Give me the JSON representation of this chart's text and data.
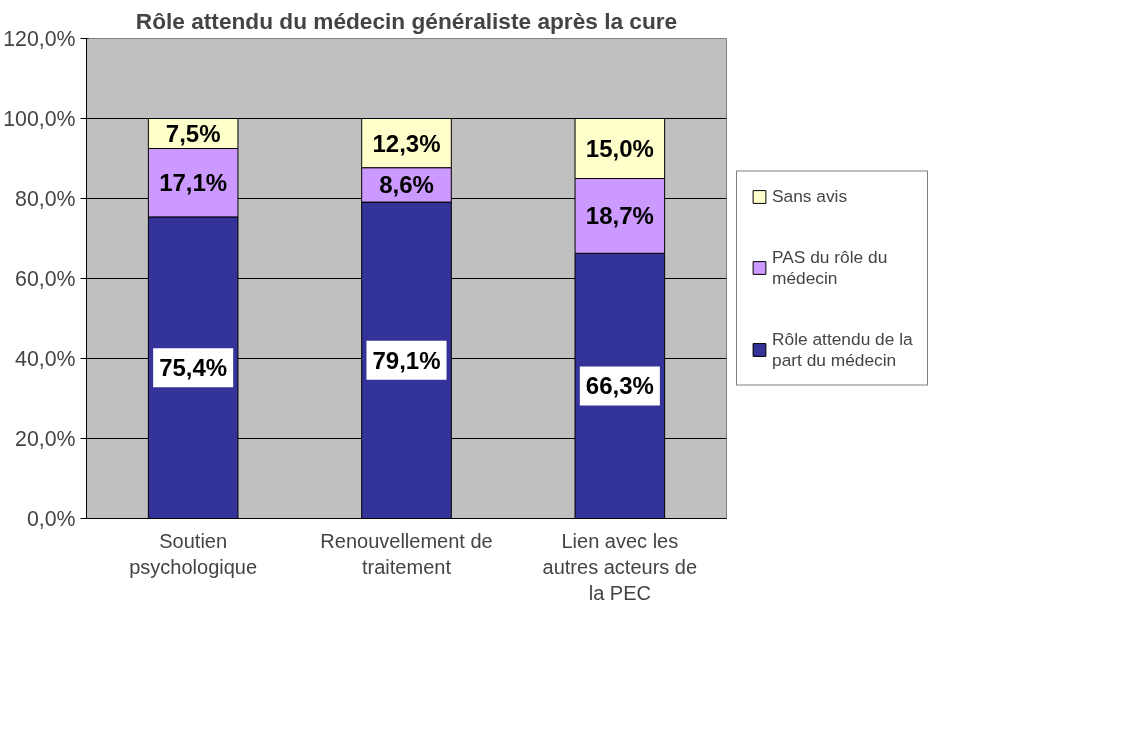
{
  "chart_data": {
    "type": "bar",
    "title": "Rôle attendu du médecin généraliste après la cure",
    "stacked": true,
    "categories": [
      "Soutien psychologique",
      "Renouvellement de traitement",
      "Lien avec les autres acteurs de la PEC"
    ],
    "series": [
      {
        "name": "Rôle attendu de la part du médecin",
        "color": "#333399",
        "values": [
          75.4,
          79.1,
          66.3
        ],
        "value_labels": [
          "75,4%",
          "79,1%",
          "66,3%"
        ]
      },
      {
        "name": "PAS du rôle du médecin",
        "color": "#cc99ff",
        "values": [
          17.1,
          8.6,
          18.7
        ],
        "value_labels": [
          "17,1%",
          "8,6%",
          "18,7%"
        ]
      },
      {
        "name": "Sans avis",
        "color": "#ffffcc",
        "values": [
          7.5,
          12.3,
          15.0
        ],
        "value_labels": [
          "7,5%",
          "12,3%",
          "15,0%"
        ]
      }
    ],
    "ylim": [
      0,
      120
    ],
    "yticks": [
      {
        "value": 0,
        "label": "0,0%"
      },
      {
        "value": 20,
        "label": "20,0%"
      },
      {
        "value": 40,
        "label": "40,0%"
      },
      {
        "value": 60,
        "label": "60,0%"
      },
      {
        "value": 80,
        "label": "80,0%"
      },
      {
        "value": 100,
        "label": "100,0%"
      },
      {
        "value": 120,
        "label": "120,0%"
      }
    ],
    "grid": "y",
    "legend": "right"
  }
}
